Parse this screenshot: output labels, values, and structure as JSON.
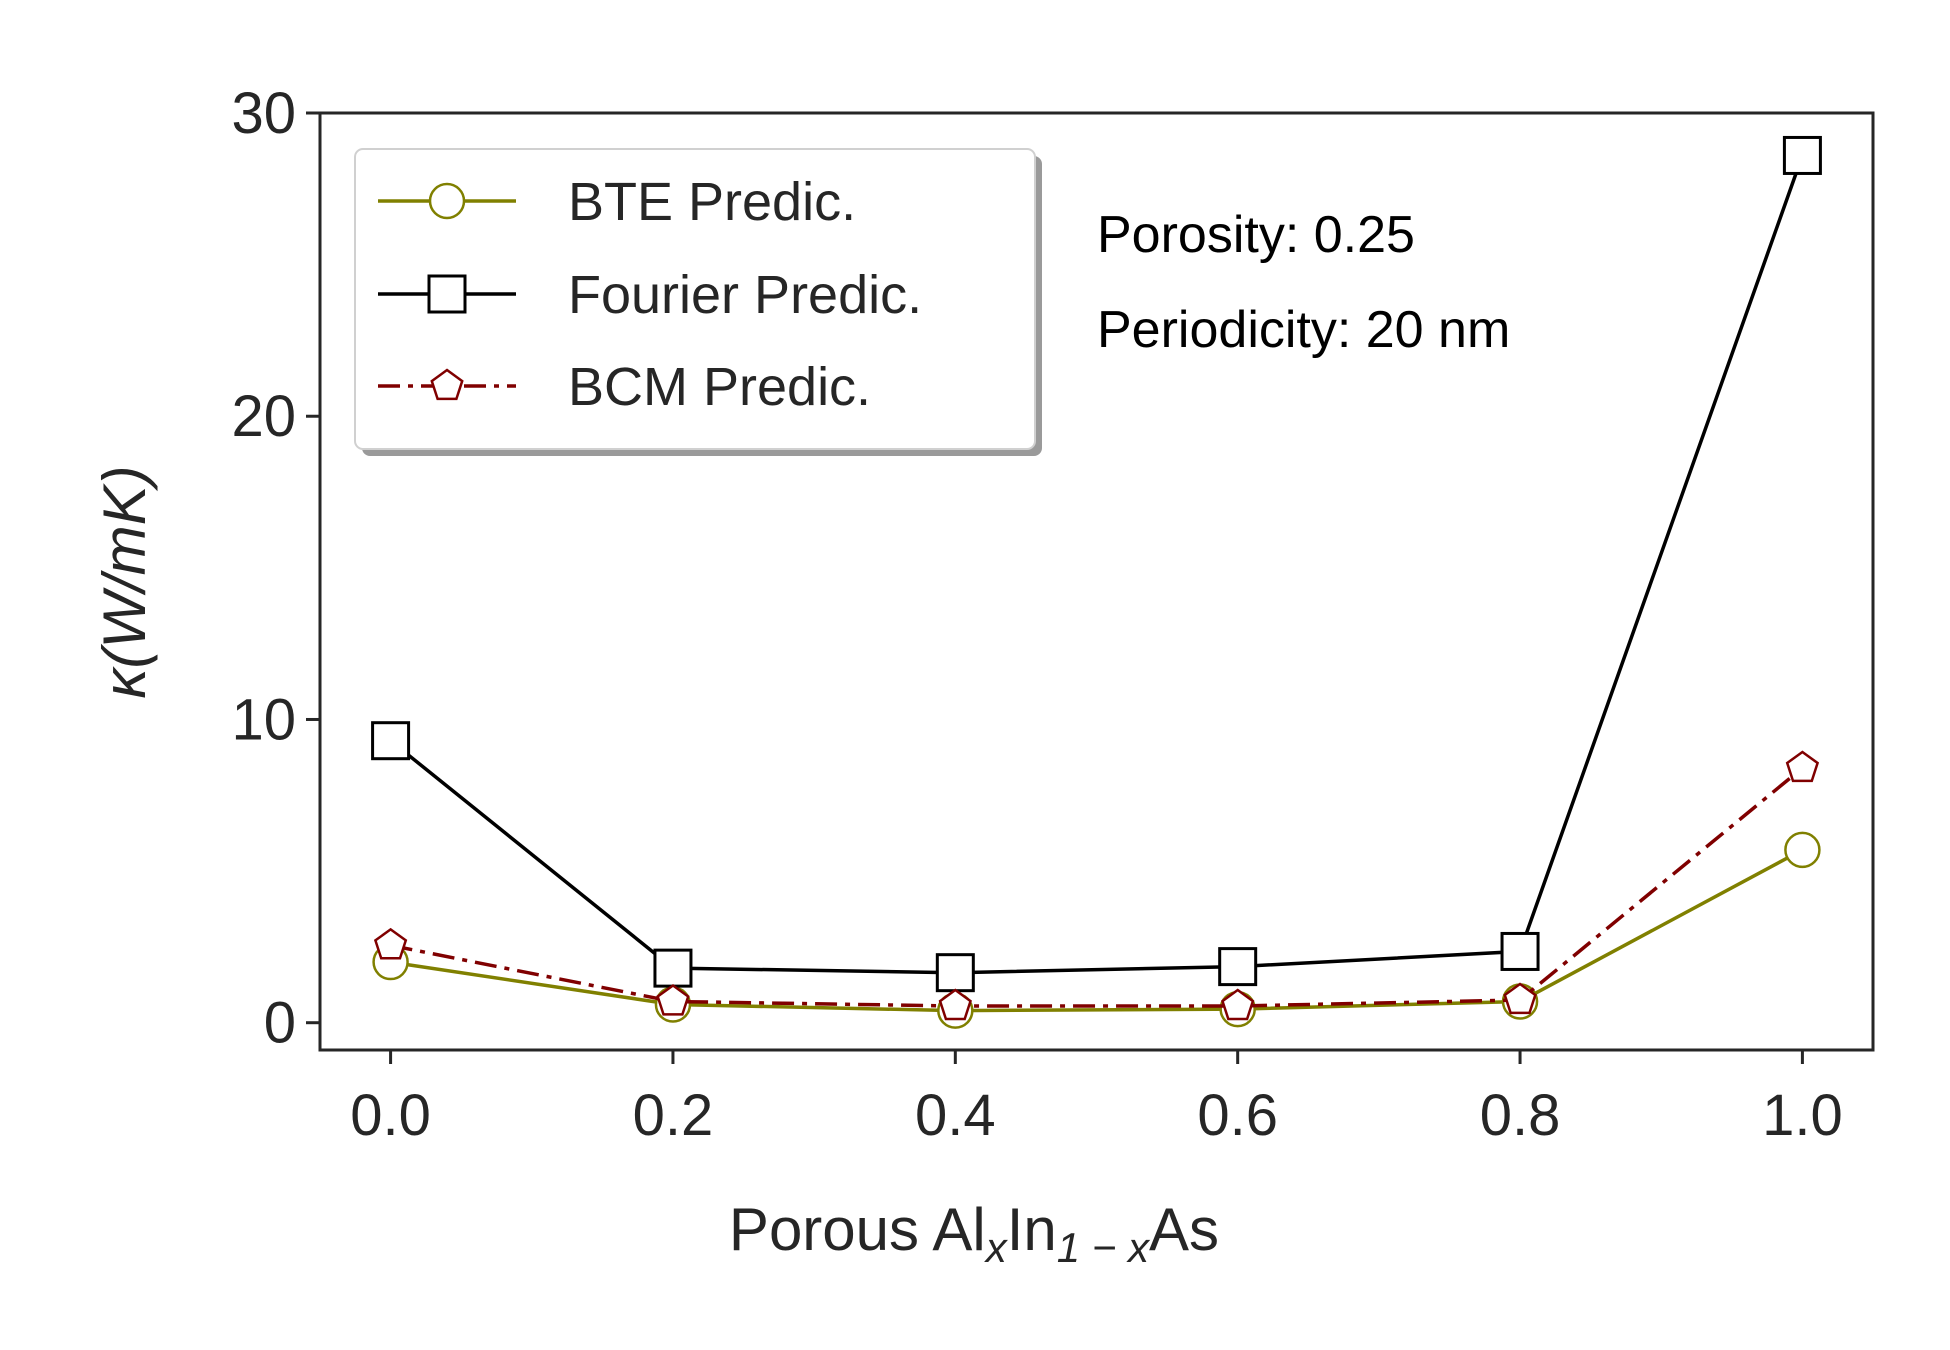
{
  "chart_data": {
    "type": "line",
    "x": [
      0.0,
      0.2,
      0.4,
      0.6,
      0.8,
      1.0
    ],
    "x_tick_labels": [
      "0.0",
      "0.2",
      "0.4",
      "0.6",
      "0.8",
      "1.0"
    ],
    "y_ticks": [
      0,
      10,
      20,
      30
    ],
    "y_tick_labels": [
      "0",
      "10",
      "20",
      "30"
    ],
    "xlim": [
      -0.05,
      1.05
    ],
    "ylim": [
      -0.9,
      30
    ],
    "xlabel": {
      "pre": "Porous Al",
      "sub1": "x",
      "mid": "In",
      "sub2": "1 − x",
      "post": "As"
    },
    "ylabel": "κ(W/mK)",
    "grid": false,
    "legend_position": "top-left",
    "annotations": [
      "Porosity: 0.25",
      "Periodicity: 20 nm"
    ],
    "series": [
      {
        "name": "BTE Predic.",
        "color": "#808000",
        "marker": "circle",
        "linestyle": "solid",
        "values": [
          2.0,
          0.6,
          0.4,
          0.45,
          0.7,
          5.7
        ]
      },
      {
        "name": "Fourier Predic.",
        "color": "#000000",
        "marker": "square",
        "linestyle": "solid",
        "values": [
          9.3,
          1.8,
          1.65,
          1.85,
          2.35,
          28.6
        ]
      },
      {
        "name": "BCM Predic.",
        "color": "#800000",
        "marker": "pentagon",
        "linestyle": "dashdot",
        "values": [
          2.55,
          0.7,
          0.55,
          0.55,
          0.75,
          8.4
        ]
      }
    ]
  }
}
